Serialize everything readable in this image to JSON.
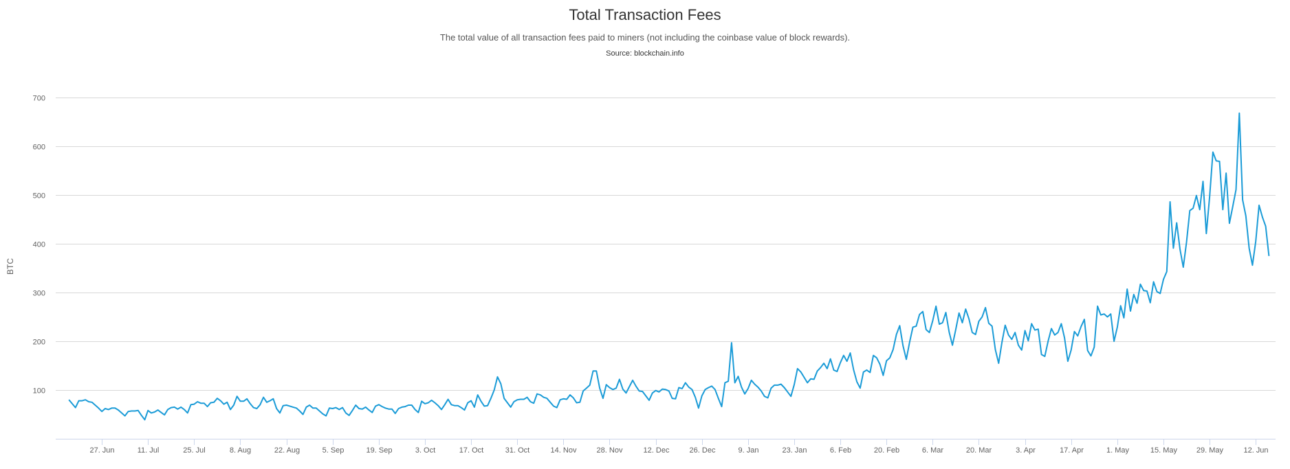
{
  "chart_data": {
    "type": "line",
    "title": "Total Transaction Fees",
    "subtitle": "The total value of all transaction fees paid to miners (not including the coinbase value of block rewards).",
    "source": "Source: blockchain.info",
    "xlabel": "",
    "ylabel": "BTC",
    "ylim": [
      0,
      700
    ],
    "xlim_days": [
      -4,
      366
    ],
    "yticks": [
      100,
      200,
      300,
      400,
      500,
      600,
      700
    ],
    "grid": true,
    "legend": "none",
    "line_color": "#1a9bd7",
    "xticks": [
      {
        "day": 10,
        "label": "27. Jun"
      },
      {
        "day": 24,
        "label": "11. Jul"
      },
      {
        "day": 38,
        "label": "25. Jul"
      },
      {
        "day": 52,
        "label": "8. Aug"
      },
      {
        "day": 66,
        "label": "22. Aug"
      },
      {
        "day": 80,
        "label": "5. Sep"
      },
      {
        "day": 94,
        "label": "19. Sep"
      },
      {
        "day": 108,
        "label": "3. Oct"
      },
      {
        "day": 122,
        "label": "17. Oct"
      },
      {
        "day": 136,
        "label": "31. Oct"
      },
      {
        "day": 150,
        "label": "14. Nov"
      },
      {
        "day": 164,
        "label": "28. Nov"
      },
      {
        "day": 178,
        "label": "12. Dec"
      },
      {
        "day": 192,
        "label": "26. Dec"
      },
      {
        "day": 206,
        "label": "9. Jan"
      },
      {
        "day": 220,
        "label": "23. Jan"
      },
      {
        "day": 234,
        "label": "6. Feb"
      },
      {
        "day": 248,
        "label": "20. Feb"
      },
      {
        "day": 262,
        "label": "6. Mar"
      },
      {
        "day": 276,
        "label": "20. Mar"
      },
      {
        "day": 290,
        "label": "3. Apr"
      },
      {
        "day": 304,
        "label": "17. Apr"
      },
      {
        "day": 318,
        "label": "1. May"
      },
      {
        "day": 332,
        "label": "15. May"
      },
      {
        "day": 346,
        "label": "29. May"
      },
      {
        "day": 360,
        "label": "12. Jun"
      }
    ],
    "series": [
      {
        "name": "BTC",
        "values": [
          80,
          72,
          64,
          78,
          78,
          80,
          76,
          75,
          69,
          63,
          56,
          62,
          60,
          63,
          63,
          59,
          53,
          47,
          56,
          57,
          57,
          58,
          48,
          39,
          58,
          53,
          55,
          59,
          54,
          49,
          60,
          64,
          65,
          61,
          65,
          60,
          53,
          70,
          71,
          76,
          73,
          73,
          66,
          74,
          75,
          83,
          78,
          71,
          75,
          60,
          69,
          87,
          77,
          77,
          82,
          72,
          64,
          62,
          70,
          85,
          75,
          78,
          82,
          62,
          53,
          68,
          69,
          67,
          65,
          63,
          57,
          50,
          65,
          69,
          63,
          63,
          57,
          51,
          47,
          63,
          62,
          64,
          60,
          64,
          53,
          48,
          58,
          69,
          62,
          61,
          65,
          59,
          54,
          67,
          70,
          66,
          63,
          61,
          61,
          52,
          62,
          65,
          66,
          69,
          69,
          60,
          54,
          77,
          72,
          74,
          79,
          74,
          68,
          60,
          70,
          81,
          70,
          68,
          68,
          64,
          59,
          74,
          78,
          65,
          90,
          77,
          67,
          68,
          83,
          100,
          127,
          113,
          83,
          74,
          65,
          76,
          80,
          81,
          81,
          85,
          76,
          73,
          92,
          90,
          85,
          83,
          75,
          67,
          64,
          80,
          82,
          81,
          90,
          84,
          74,
          75,
          98,
          104,
          110,
          139,
          139,
          104,
          83,
          111,
          105,
          101,
          104,
          122,
          102,
          94,
          107,
          120,
          108,
          98,
          97,
          88,
          79,
          94,
          99,
          96,
          102,
          101,
          98,
          83,
          82,
          105,
          103,
          115,
          106,
          101,
          85,
          63,
          88,
          101,
          105,
          108,
          101,
          83,
          66,
          115,
          118,
          197,
          115,
          128,
          106,
          92,
          103,
          120,
          112,
          106,
          98,
          87,
          84,
          104,
          110,
          110,
          112,
          105,
          96,
          87,
          111,
          144,
          137,
          126,
          115,
          123,
          122,
          139,
          146,
          155,
          144,
          164,
          141,
          138,
          156,
          171,
          159,
          176,
          142,
          117,
          104,
          137,
          141,
          136,
          171,
          166,
          153,
          130,
          160,
          166,
          183,
          214,
          232,
          191,
          163,
          198,
          229,
          231,
          255,
          261,
          224,
          218,
          242,
          272,
          235,
          238,
          259,
          219,
          192,
          224,
          258,
          238,
          266,
          246,
          218,
          214,
          241,
          250,
          269,
          237,
          231,
          183,
          155,
          197,
          233,
          213,
          204,
          218,
          192,
          182,
          222,
          201,
          236,
          223,
          225,
          173,
          169,
          200,
          226,
          213,
          218,
          236,
          207,
          159,
          182,
          220,
          211,
          230,
          245,
          181,
          170,
          188,
          272,
          254,
          256,
          250,
          256,
          200,
          229,
          273,
          248,
          307,
          262,
          296,
          278,
          317,
          304,
          303,
          279,
          322,
          302,
          298,
          327,
          343,
          486,
          391,
          443,
          389,
          352,
          403,
          468,
          473,
          499,
          470,
          528,
          421,
          496,
          588,
          570,
          569,
          470,
          545,
          442,
          476,
          511,
          668,
          490,
          457,
          391,
          356,
          405,
          479,
          455,
          436,
          375
        ]
      }
    ]
  }
}
